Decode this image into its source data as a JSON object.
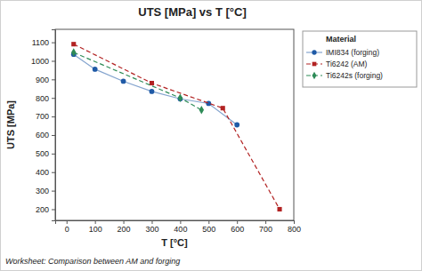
{
  "chart_data": {
    "type": "line",
    "title": "UTS [MPa] vs T [°C]",
    "x_label": "T [°C]",
    "y_label": "UTS [MPa]",
    "legend_title": "Material",
    "annotation": "Worksheet: Comparison between AM and forging",
    "legend": "right",
    "grid": false,
    "xlim": [
      -40,
      800
    ],
    "xticks": [
      0,
      100,
      200,
      300,
      400,
      500,
      600,
      700,
      800
    ],
    "ylim": [
      140,
      1170
    ],
    "yticks": [
      200,
      300,
      400,
      500,
      600,
      700,
      800,
      900,
      1000,
      1100
    ],
    "series": [
      {
        "name": "IMI834 (forging)",
        "color": "#1f5aa6",
        "marker": "circle",
        "line_style": "solid",
        "x": [
          25,
          100,
          200,
          300,
          400,
          500,
          600
        ],
        "values": [
          1035,
          955,
          890,
          835,
          795,
          770,
          655
        ]
      },
      {
        "name": "Ti6242 (AM)",
        "color": "#b22222",
        "marker": "square",
        "line_style": "dashed",
        "x": [
          25,
          300,
          550,
          750
        ],
        "values": [
          1090,
          880,
          745,
          200
        ]
      },
      {
        "name": "Ti6242s (forging)",
        "color": "#2e8b57",
        "marker": "diamond",
        "line_style": "dashed",
        "x": [
          25,
          400,
          475
        ],
        "values": [
          1045,
          800,
          735
        ]
      }
    ]
  }
}
